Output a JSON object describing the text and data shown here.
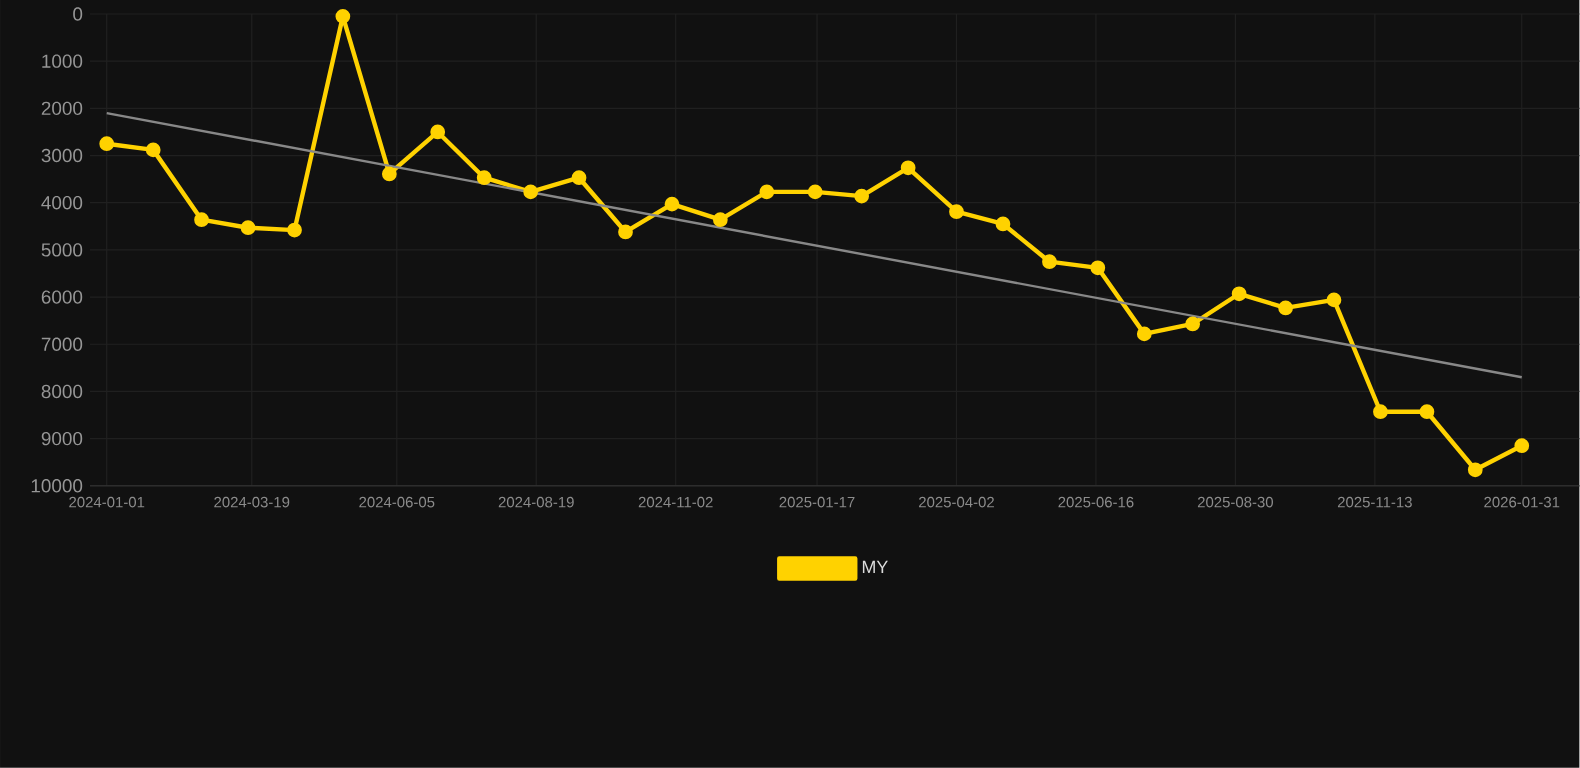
{
  "chart_data": {
    "type": "line",
    "marker": "circle",
    "line_style": "solid",
    "grid": true,
    "legend": "bottom",
    "ylim": [
      10000,
      0
    ],
    "yticks": [
      0,
      1000,
      2000,
      3000,
      4000,
      5000,
      6000,
      7000,
      8000,
      9000,
      10000
    ],
    "xlim": [
      "2023-12-23",
      "2026-03-03"
    ],
    "xticks": [
      "2024-01-01",
      "2024-03-19",
      "2024-06-05",
      "2024-08-19",
      "2024-11-02",
      "2025-01-17",
      "2025-04-02",
      "2025-06-16",
      "2025-08-30",
      "2025-11-13",
      "2026-01-31"
    ],
    "x": [
      "2024-01-01",
      "2024-01-26",
      "2024-02-21",
      "2024-03-17",
      "2024-04-11",
      "2024-05-07",
      "2024-06-01",
      "2024-06-27",
      "2024-07-22",
      "2024-08-16",
      "2024-09-11",
      "2024-10-06",
      "2024-10-31",
      "2024-11-26",
      "2024-12-21",
      "2025-01-16",
      "2025-02-10",
      "2025-03-07",
      "2025-04-02",
      "2025-04-27",
      "2025-05-22",
      "2025-06-17",
      "2025-07-12",
      "2025-08-07",
      "2025-09-01",
      "2025-09-26",
      "2025-10-22",
      "2025-11-16",
      "2025-12-11",
      "2026-01-06",
      "2026-01-31"
    ],
    "series": [
      {
        "name": "MY",
        "color": "#ffd200",
        "values": [
          2750,
          2880,
          4360,
          4530,
          4580,
          50,
          3390,
          2500,
          3470,
          3770,
          3470,
          4620,
          4030,
          4360,
          3770,
          3770,
          3860,
          3260,
          4190,
          4450,
          5250,
          5380,
          6780,
          6570,
          5930,
          6230,
          6060,
          8430,
          8430,
          9660,
          9150
        ]
      },
      {
        "type": "line",
        "marker": "none",
        "color": "#888888",
        "x": [
          "2024-01-01",
          "2026-01-31"
        ],
        "values": [
          2100,
          7700
        ]
      }
    ]
  }
}
